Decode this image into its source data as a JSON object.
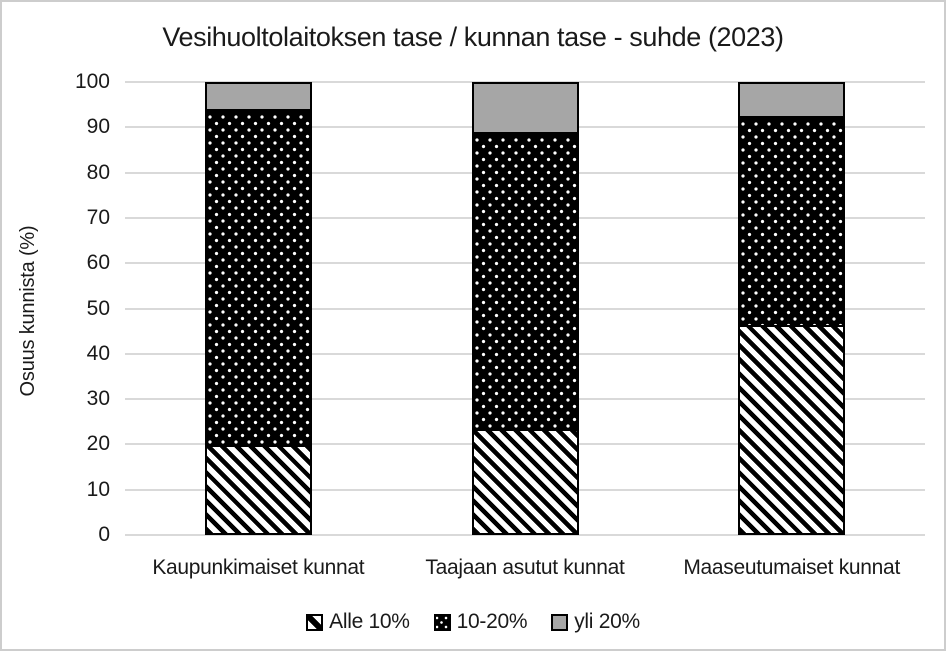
{
  "chart_data": {
    "type": "bar",
    "stacked": true,
    "orientation": "vertical",
    "title": "Vesihuoltolaitoksen tase / kunnan tase - suhde (2023)",
    "xlabel": "",
    "ylabel": "Osuus kunnista (%)",
    "categories": [
      "Kaupunkimaiset kunnat",
      "Taajaan asutut kunnat",
      "Maaseutumaiset kunnat"
    ],
    "series": [
      {
        "name": "Alle 10%",
        "pattern": "diagonal-stripes-black-on-white",
        "values": [
          19.4,
          22.9,
          46.0
        ]
      },
      {
        "name": "10-20%",
        "pattern": "white-dots-on-black",
        "values": [
          74.1,
          65.7,
          46.0
        ]
      },
      {
        "name": "yli 20%",
        "pattern": "solid-gray",
        "values": [
          6.5,
          11.4,
          8.0
        ]
      }
    ],
    "ylim": [
      0,
      100
    ],
    "yticks": [
      0,
      10,
      20,
      30,
      40,
      50,
      60,
      70,
      80,
      90,
      100
    ],
    "grid": "horizontal",
    "legend_position": "bottom"
  },
  "colors": {
    "gray_fill": "#a6a6a6",
    "pattern_black": "#000000",
    "gridline": "#d9d9d9",
    "frame_border": "#cdcdcd",
    "text": "#1a1a1a"
  }
}
